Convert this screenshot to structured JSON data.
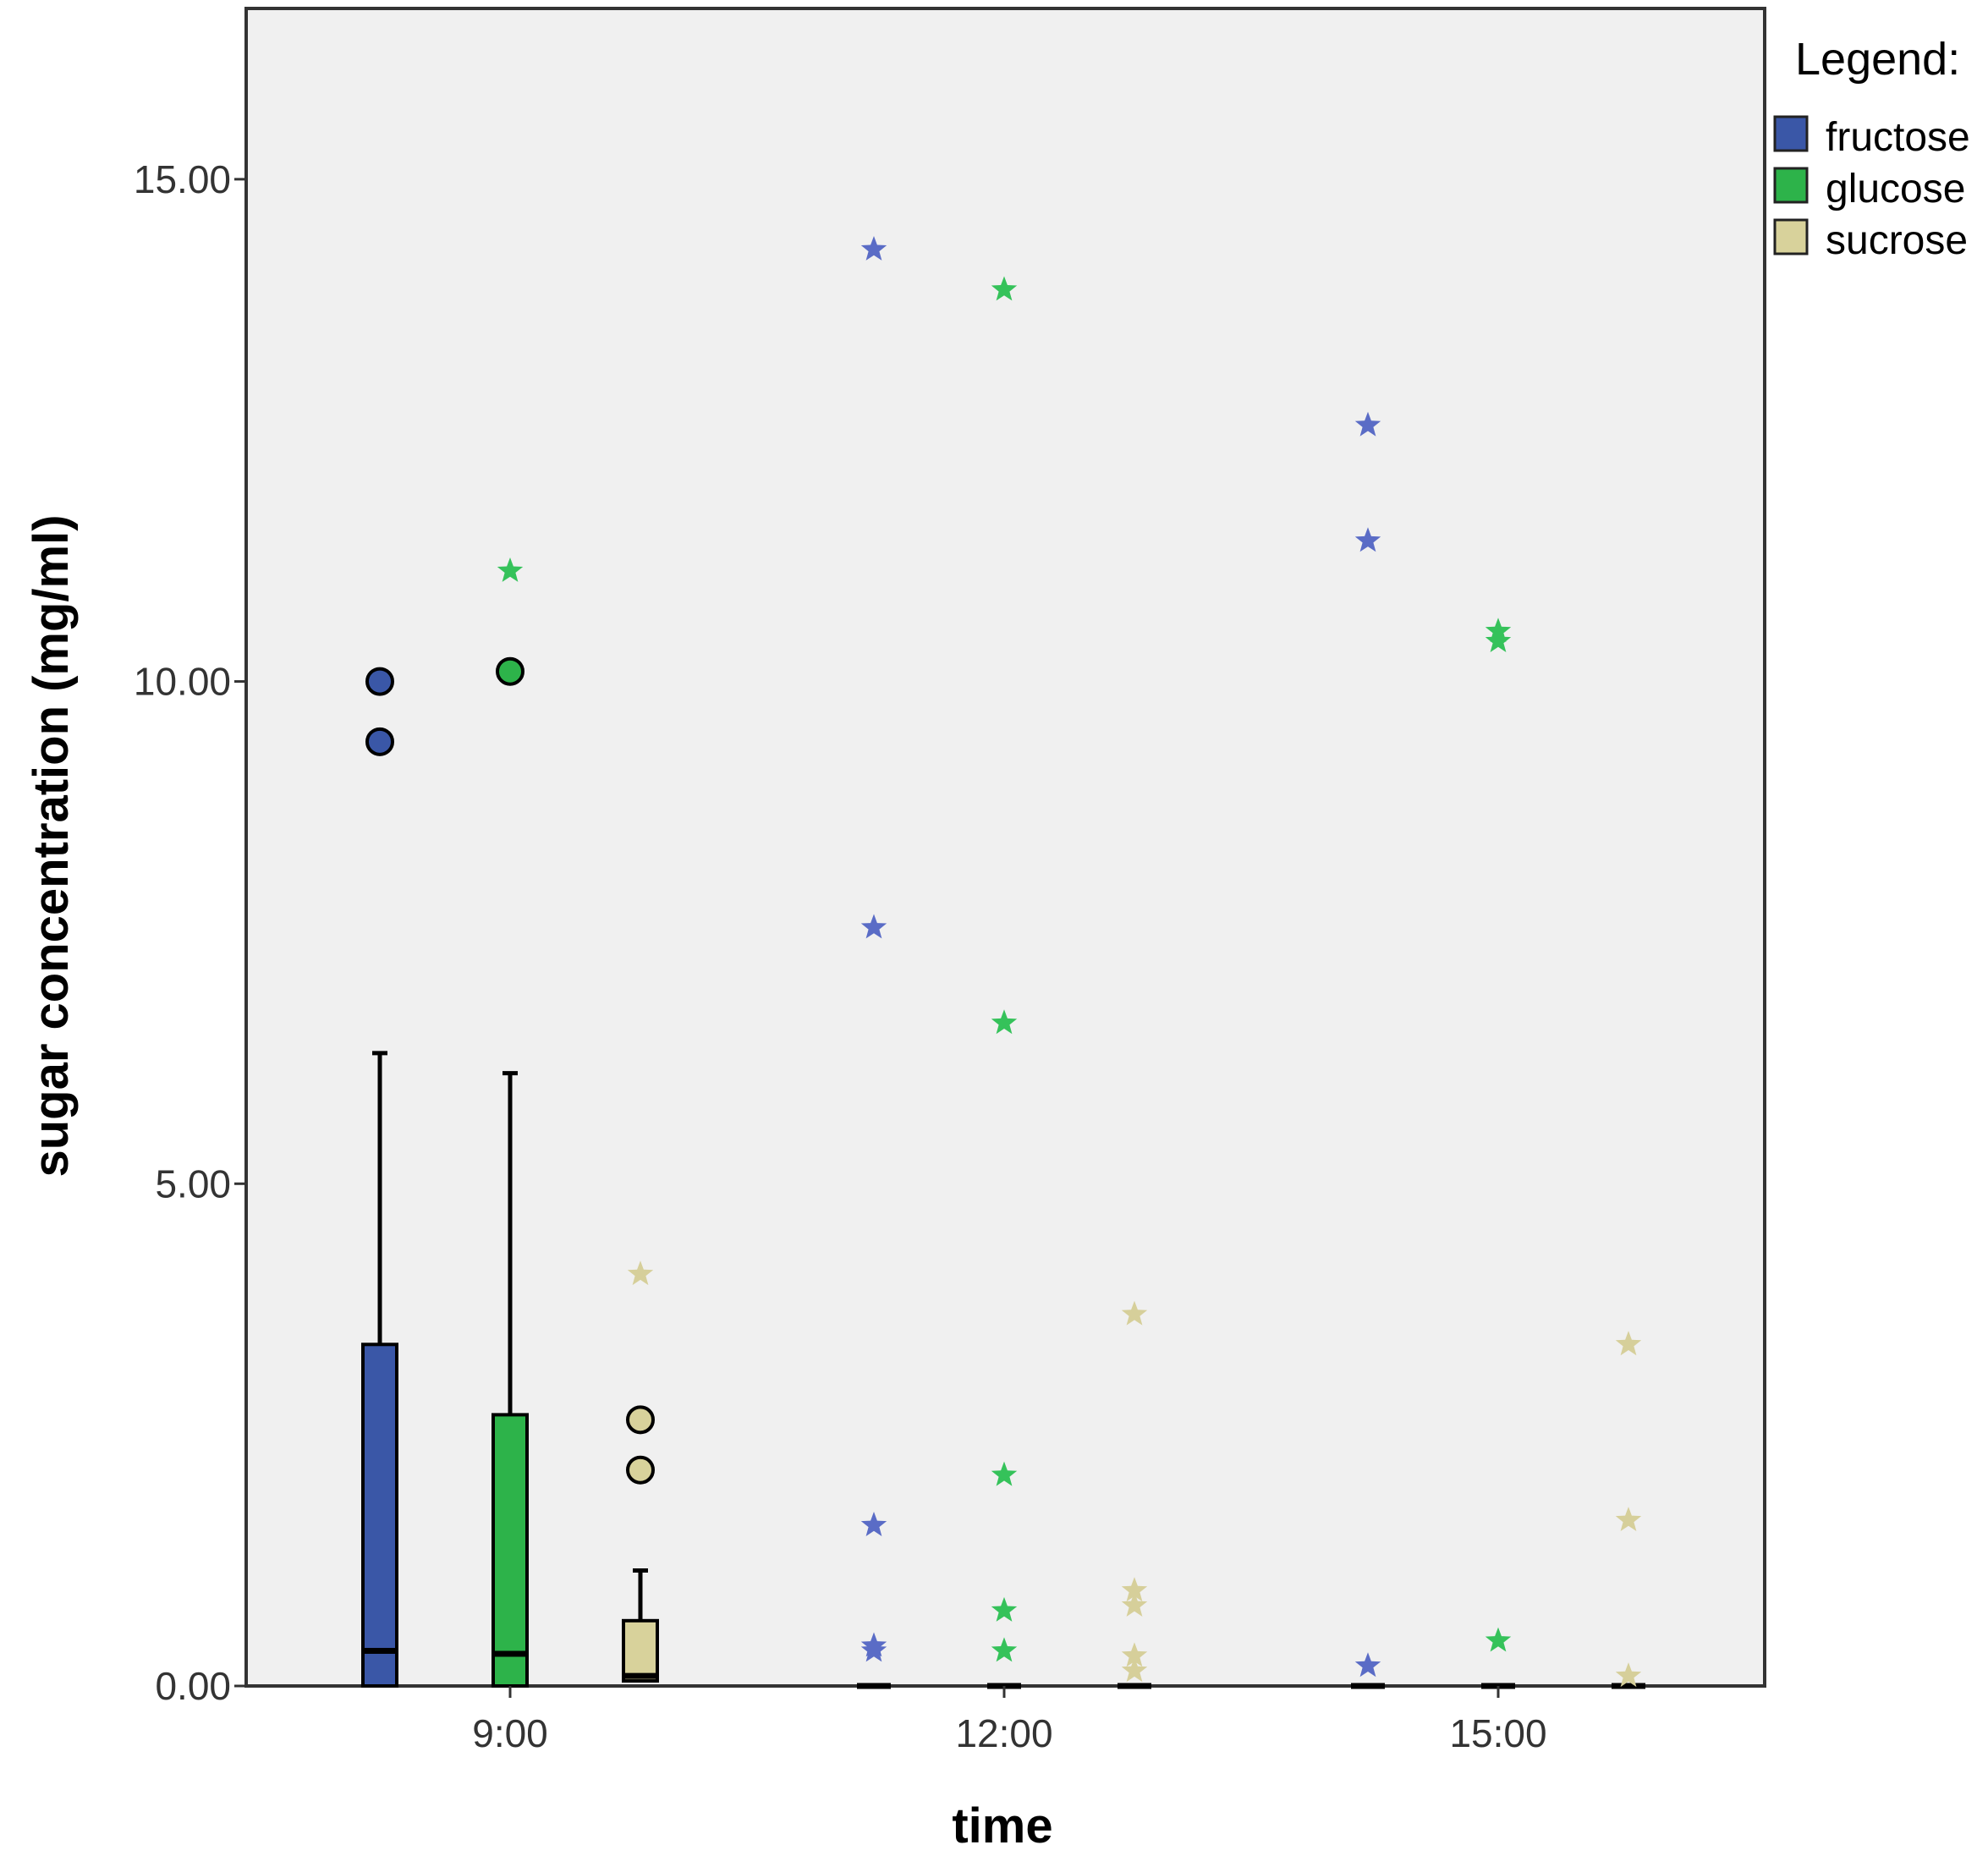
{
  "chart_data": {
    "type": "boxplot",
    "xlabel": "time",
    "ylabel": "sugar concentration (mg/ml)",
    "categories": [
      "9:00",
      "12:00",
      "15:00"
    ],
    "ylim": [
      0,
      16.7
    ],
    "yticks": [
      "0.00",
      "5.00",
      "10.00",
      "15.00"
    ],
    "ytick_values": [
      0,
      5,
      10,
      15
    ],
    "grid": false,
    "plot_background": "#f0f0f0",
    "legend": {
      "title": "Legend:",
      "placement": "right-top",
      "entries": [
        "fructose",
        "glucose",
        "sucrose"
      ]
    },
    "series": [
      {
        "name": "fructose",
        "color": "#3a57a7",
        "star_color": "#5a6cc6",
        "boxes": [
          {
            "category": "9:00",
            "min": 0,
            "q1": 0,
            "median": 0.35,
            "q3": 3.4,
            "max": 6.3,
            "outliers": [
              10.0,
              9.4
            ],
            "extremes": []
          },
          {
            "category": "12:00",
            "min": 0,
            "q1": 0,
            "median": 0,
            "q3": 0,
            "max": 0,
            "outliers": [],
            "extremes": [
              14.3,
              7.55,
              1.6,
              0.4,
              0.35
            ]
          },
          {
            "category": "15:00",
            "min": 0,
            "q1": 0,
            "median": 0,
            "q3": 0,
            "max": 0,
            "outliers": [],
            "extremes": [
              12.55,
              11.4,
              0.2
            ]
          }
        ]
      },
      {
        "name": "glucose",
        "color": "#2db34a",
        "star_color": "#35c25a",
        "boxes": [
          {
            "category": "9:00",
            "min": 0,
            "q1": 0,
            "median": 0.32,
            "q3": 2.7,
            "max": 6.1,
            "outliers": [
              10.1
            ],
            "extremes": [
              11.1
            ]
          },
          {
            "category": "12:00",
            "min": 0,
            "q1": 0,
            "median": 0,
            "q3": 0,
            "max": 0,
            "outliers": [],
            "extremes": [
              13.9,
              6.6,
              2.1,
              0.75,
              0.35
            ]
          },
          {
            "category": "15:00",
            "min": 0,
            "q1": 0,
            "median": 0,
            "q3": 0,
            "max": 0,
            "outliers": [],
            "extremes": [
              10.5,
              10.4,
              0.45
            ]
          }
        ]
      },
      {
        "name": "sucrose",
        "color": "#d8d29b",
        "star_color": "#d6cf9a",
        "boxes": [
          {
            "category": "9:00",
            "min": 0,
            "q1": 0.05,
            "median": 0.1,
            "q3": 0.65,
            "max": 1.15,
            "outliers": [
              2.65,
              2.15
            ],
            "extremes": [
              4.1
            ]
          },
          {
            "category": "12:00",
            "min": 0,
            "q1": 0,
            "median": 0,
            "q3": 0,
            "max": 0,
            "outliers": [],
            "extremes": [
              3.7,
              0.95,
              0.8,
              0.3,
              0.15
            ]
          },
          {
            "category": "15:00",
            "min": 0,
            "q1": 0,
            "median": 0,
            "q3": 0,
            "max": 0,
            "outliers": [],
            "extremes": [
              3.4,
              1.65,
              0.1
            ]
          }
        ]
      }
    ]
  }
}
